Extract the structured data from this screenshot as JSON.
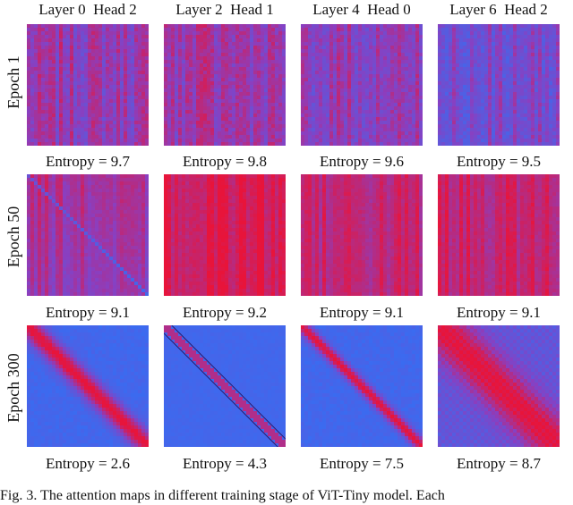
{
  "columns": [
    {
      "layer": "Layer 0",
      "head": "Head 2"
    },
    {
      "layer": "Layer 2",
      "head": "Head 1"
    },
    {
      "layer": "Layer 4",
      "head": "Head 0"
    },
    {
      "layer": "Layer 6",
      "head": "Head 2"
    }
  ],
  "rows": [
    {
      "label": "Epoch 1",
      "entropies": [
        "Entropy = 9.7",
        "Entropy = 9.8",
        "Entropy = 9.6",
        "Entropy = 9.5"
      ]
    },
    {
      "label": "Epoch 50",
      "entropies": [
        "Entropy = 9.1",
        "Entropy = 9.2",
        "Entropy = 9.1",
        "Entropy = 9.1"
      ]
    },
    {
      "label": "Epoch 300",
      "entropies": [
        "Entropy = 2.6",
        "Entropy = 4.3",
        "Entropy = 7.5",
        "Entropy = 8.7"
      ]
    }
  ],
  "colors": {
    "low": "#3a6bf0",
    "mid": "#8a3fc0",
    "high": "#e8143a"
  },
  "caption": "Fig. 3.  The attention maps in different training stage of ViT-Tiny model. Each"
}
